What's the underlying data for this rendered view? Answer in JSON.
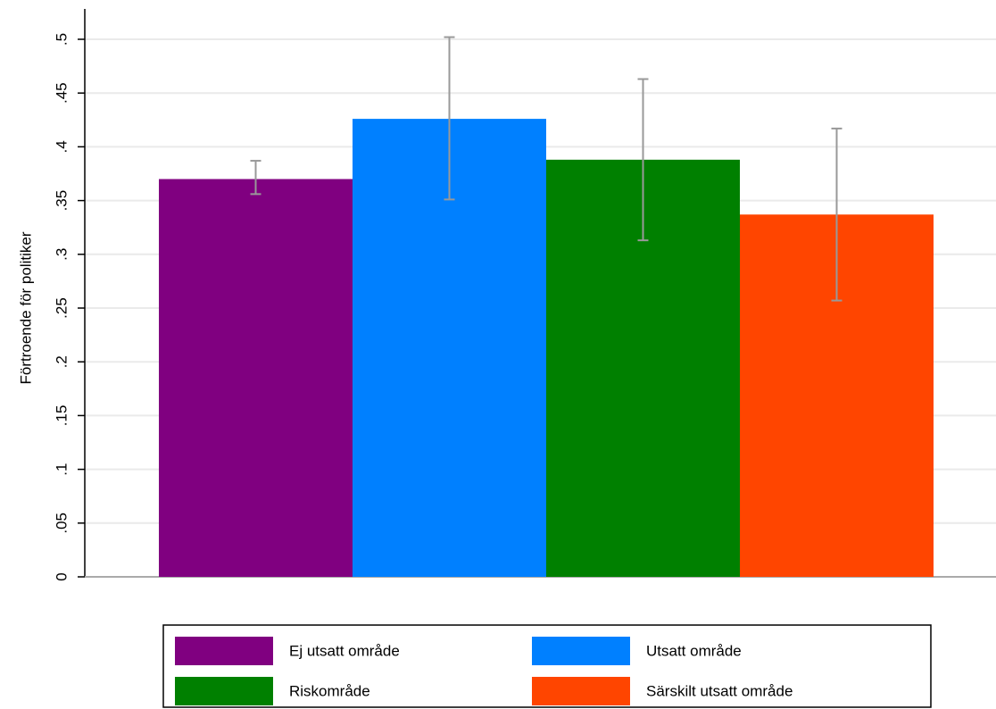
{
  "chart_data": {
    "type": "bar",
    "y_axis_label": "Förtroende för politiker",
    "ylim": [
      0,
      0.5
    ],
    "yticks": [
      0,
      {
        "value": 0.05,
        "label": ".05"
      },
      {
        "value": 0.1,
        "label": ".1"
      },
      {
        "value": 0.15,
        "label": ".15"
      },
      {
        "value": 0.2,
        "label": ".2"
      },
      {
        "value": 0.25,
        "label": ".25"
      },
      {
        "value": 0.3,
        "label": ".3"
      },
      {
        "value": 0.35,
        "label": ".35"
      },
      {
        "value": 0.4,
        "label": ".4"
      },
      {
        "value": 0.45,
        "label": ".45"
      },
      {
        "value": 0.5,
        "label": ".5"
      }
    ],
    "grid": true,
    "series": [
      {
        "name": "Ej utsatt område",
        "color": "#800080",
        "values": [
          0.37
        ],
        "ci_low": [
          0.356
        ],
        "ci_high": [
          0.387
        ]
      },
      {
        "name": "Utsatt område",
        "color": "#0080ff",
        "values": [
          0.426
        ],
        "ci_low": [
          0.351
        ],
        "ci_high": [
          0.502
        ]
      },
      {
        "name": "Riskområde",
        "color": "#008000",
        "values": [
          0.388
        ],
        "ci_low": [
          0.313
        ],
        "ci_high": [
          0.463
        ]
      },
      {
        "name": "Särskilt utsatt område",
        "color": "#ff4500",
        "values": [
          0.337
        ],
        "ci_low": [
          0.257
        ],
        "ci_high": [
          0.417
        ]
      }
    ]
  }
}
